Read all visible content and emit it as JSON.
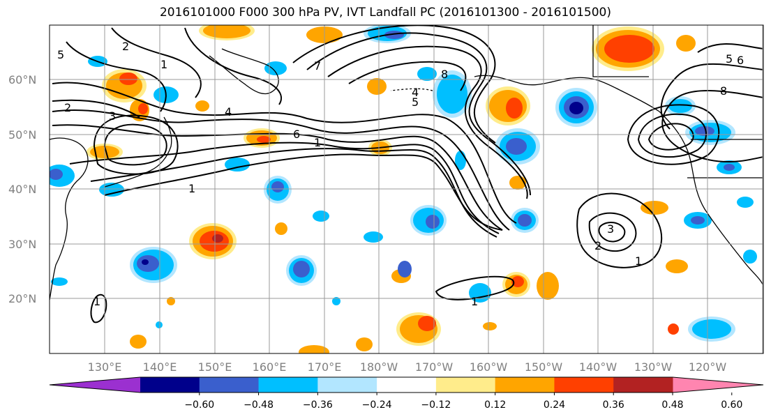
{
  "title": "2016101000 F000 300 hPa PV, IVT Landfall PC (2016101300 - 2016101500)",
  "lat_labels": [
    "60°N",
    "50°N",
    "40°N",
    "30°N",
    "20°N"
  ],
  "lon_labels": [
    "130°E",
    "140°E",
    "150°E",
    "160°E",
    "170°E",
    "180°W",
    "170°W",
    "160°W",
    "150°W",
    "140°W",
    "130°W",
    "120°W"
  ],
  "colorbar": {
    "levels": [
      "−0.60",
      "−0.48",
      "−0.36",
      "−0.24",
      "−0.12",
      "0.12",
      "0.24",
      "0.36",
      "0.48",
      "0.60"
    ],
    "colors": [
      "#9b30d0",
      "#00008b",
      "#3a5fcd",
      "#00bfff",
      "#b2e6ff",
      "#ffffff",
      "#ffec8b",
      "#ffa500",
      "#ff4000",
      "#b22222",
      "#ff85b0"
    ]
  },
  "contour_labels": [
    "1",
    "2",
    "3",
    "4",
    "5",
    "6",
    "7",
    "8"
  ],
  "colors": {
    "blue_dark": "#00008b",
    "blue_mid": "#3a5fcd",
    "blue_light": "#00bfff",
    "blue_pale": "#b2e6ff",
    "yellow": "#ffec8b",
    "orange": "#ffa500",
    "red": "#ff4000",
    "dark_red": "#b22222"
  }
}
